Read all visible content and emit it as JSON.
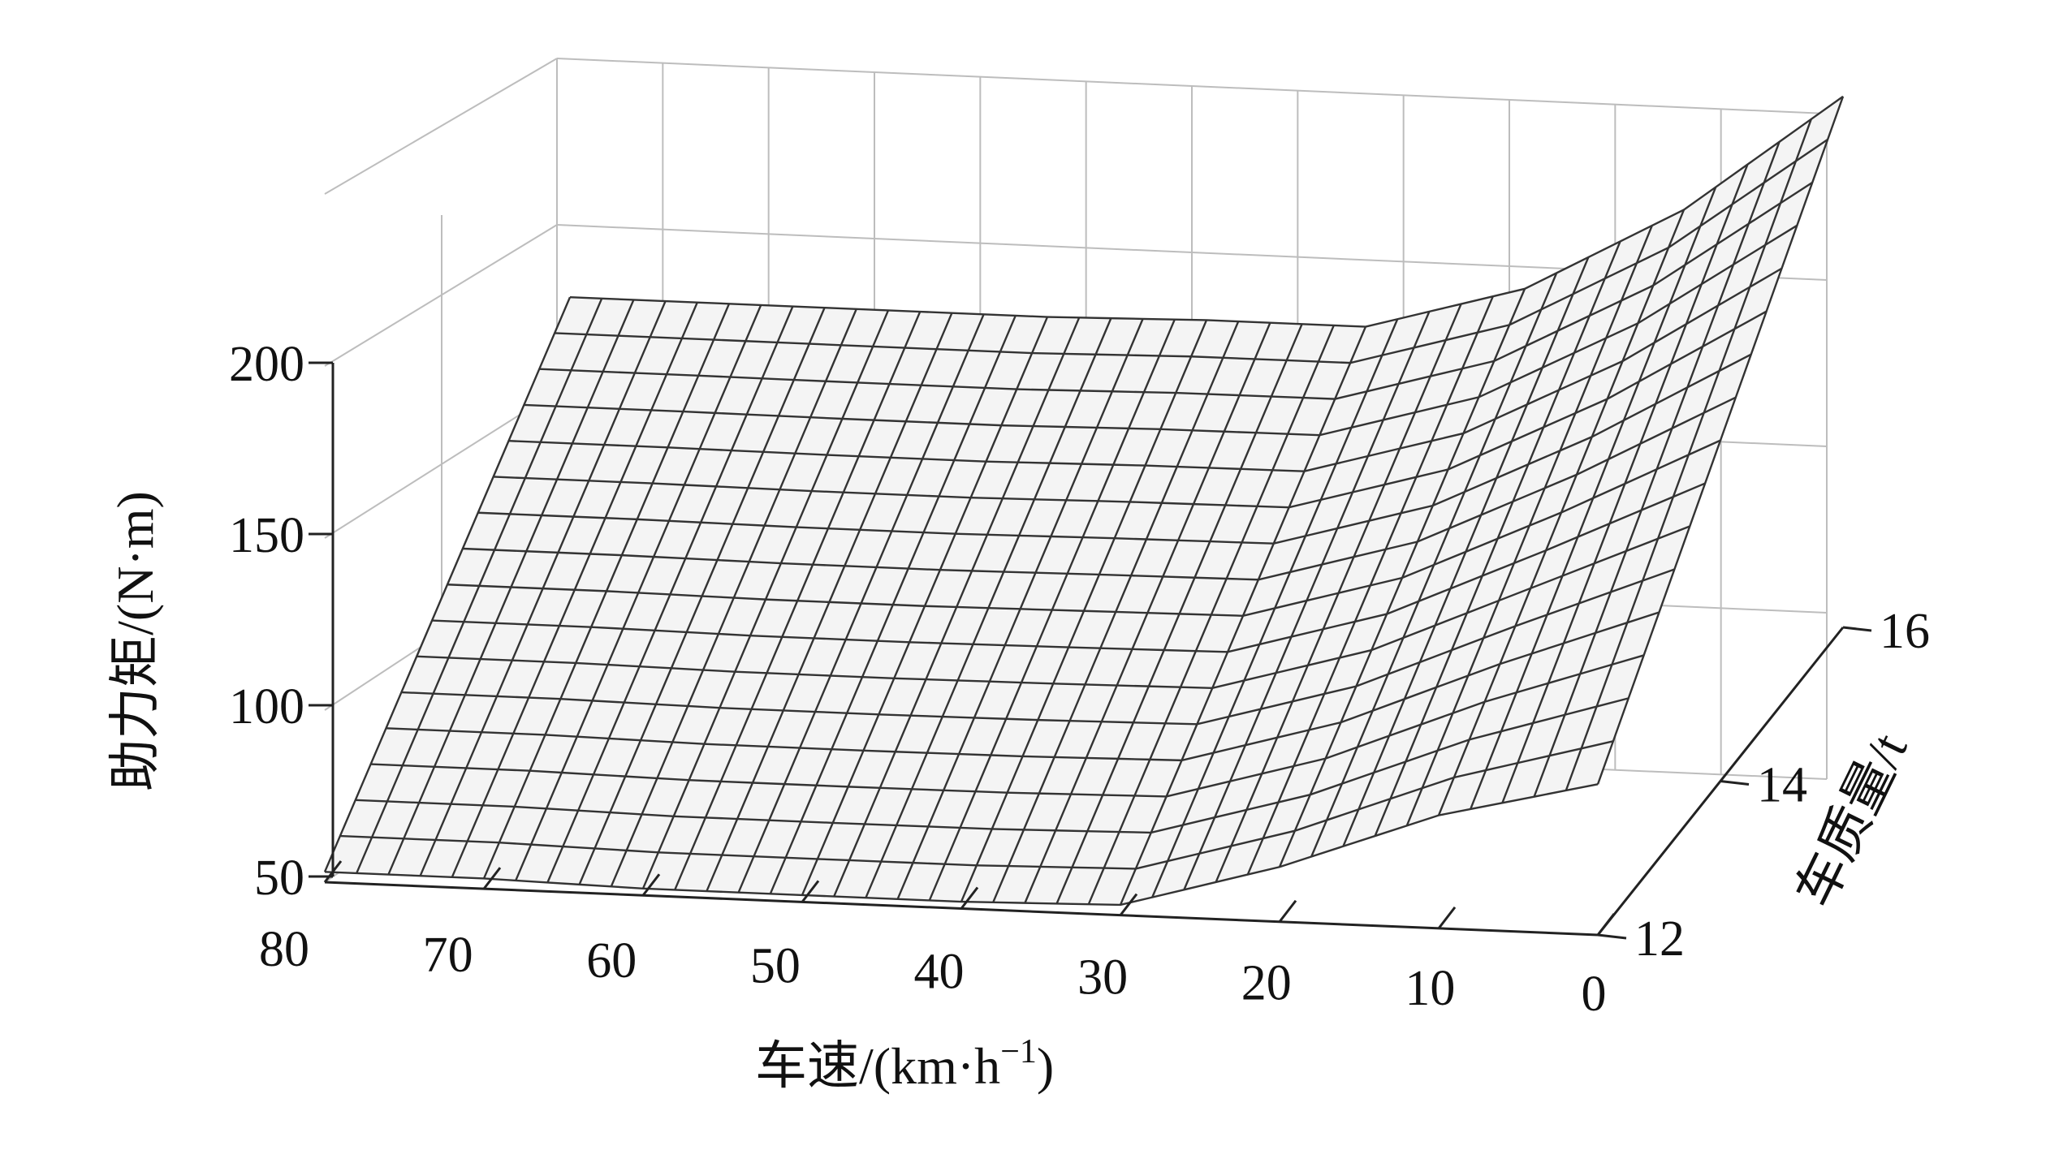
{
  "chart_data": {
    "type": "surface",
    "xlabel": "车速/(km·h",
    "xlabel_sup": "−1",
    "xlabel_close": ")",
    "ylabel": "车质量/t",
    "zlabel": "助力矩/(N·m)",
    "x_ticks": [
      "80",
      "70",
      "60",
      "50",
      "40",
      "30",
      "20",
      "10",
      "0"
    ],
    "y_ticks": [
      "12",
      "14",
      "16"
    ],
    "z_ticks": [
      "50",
      "100",
      "150",
      "200"
    ],
    "xlim": [
      0,
      80
    ],
    "ylim": [
      12,
      16
    ],
    "zlim": [
      50,
      200
    ],
    "grid": true,
    "surface": {
      "speed": [
        80,
        70,
        60,
        50,
        40,
        30,
        20,
        10,
        0
      ],
      "mass": [
        12,
        16
      ],
      "torque_at_mass_12": [
        53,
        53,
        52,
        52,
        52,
        53,
        66,
        83,
        94
      ],
      "torque_at_mass_16": [
        131,
        131,
        131,
        131,
        132,
        132,
        145,
        170,
        205
      ]
    },
    "colors": {
      "mesh_line": "#333333",
      "axis": "#222222",
      "grid": "#bdbdbd"
    }
  }
}
